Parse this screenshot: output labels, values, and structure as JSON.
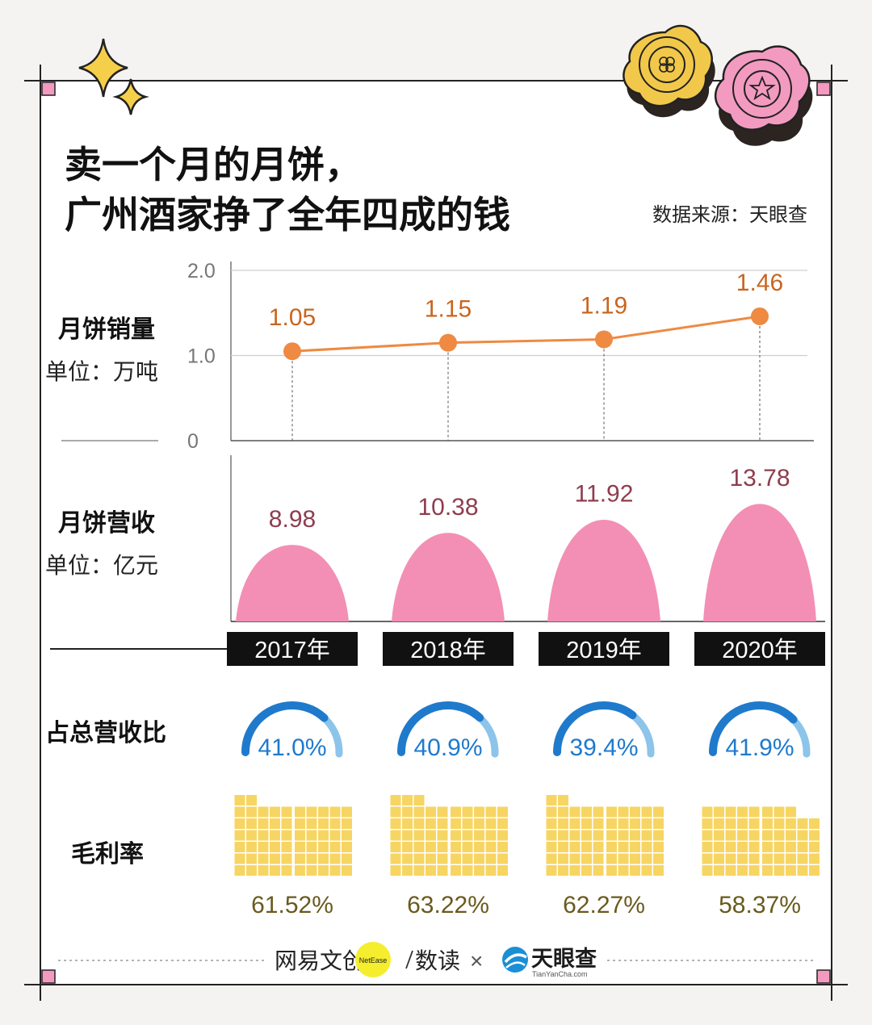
{
  "title": {
    "line1": "卖一个月的月饼，",
    "line2": "广州酒家挣了全年四成的钱"
  },
  "source": "数据来源：天眼查",
  "sections": {
    "sales": {
      "label": "月饼销量",
      "unit": "单位：万吨"
    },
    "revenue": {
      "label": "月饼营收",
      "unit": "单位：亿元"
    },
    "share": {
      "label": "占总营收比"
    },
    "margin": {
      "label": "毛利率"
    }
  },
  "footer": {
    "brand1": "网易文创",
    "brand1_badge": "NetEase",
    "brand2": "数读",
    "times": "×",
    "brand3": "天眼查",
    "brand3_sub": "TianYanCha.com"
  },
  "colors": {
    "line": "#ee8a42",
    "line_label": "#c9651f",
    "bar": "#f38fb4",
    "bar_label": "#8e3d4e",
    "gauge": "#1f7acc",
    "gauge_track": "#8cc4ea",
    "gauge_label": "#1f7acc",
    "waffle": "#f7d563",
    "margin_label": "#6a5a1d",
    "year_box": "#111111"
  },
  "chart_data": [
    {
      "type": "line",
      "name": "月饼销量",
      "ylabel": "单位：万吨",
      "categories": [
        "2017年",
        "2018年",
        "2019年",
        "2020年"
      ],
      "values": [
        1.05,
        1.15,
        1.19,
        1.46
      ],
      "value_labels": [
        "1.05",
        "1.15",
        "1.19",
        "1.46"
      ],
      "yticks": [
        0,
        1.0,
        2.0
      ],
      "ytick_labels": [
        "0",
        "1.0",
        "2.0"
      ],
      "ylim": [
        0,
        2.0
      ],
      "grid": true
    },
    {
      "type": "bar",
      "name": "月饼营收",
      "ylabel": "单位：亿元",
      "categories": [
        "2017年",
        "2018年",
        "2019年",
        "2020年"
      ],
      "values": [
        8.98,
        10.38,
        11.92,
        13.78
      ],
      "value_labels": [
        "8.98",
        "10.38",
        "11.92",
        "13.78"
      ]
    },
    {
      "type": "gauge",
      "name": "占总营收比",
      "categories": [
        "2017年",
        "2018年",
        "2019年",
        "2020年"
      ],
      "values": [
        41.0,
        40.9,
        39.4,
        41.9
      ],
      "value_labels": [
        "41.0%",
        "40.9%",
        "39.4%",
        "41.9%"
      ]
    },
    {
      "type": "waffle",
      "name": "毛利率",
      "categories": [
        "2017年",
        "2018年",
        "2019年",
        "2020年"
      ],
      "values": [
        61.52,
        63.22,
        62.27,
        58.37
      ],
      "value_labels": [
        "61.52%",
        "63.22%",
        "62.27%",
        "58.37%"
      ]
    }
  ]
}
